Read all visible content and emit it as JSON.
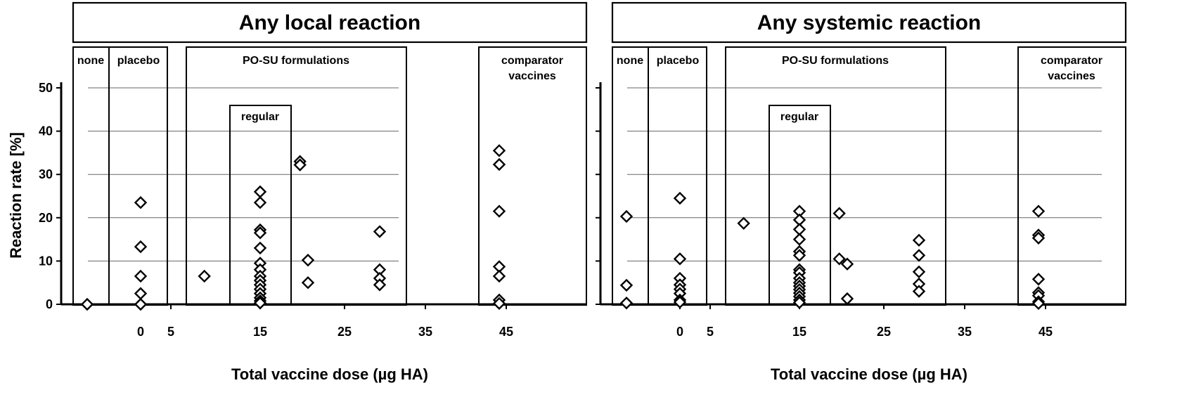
{
  "y_axis_label": "Reaction rate  [%]",
  "chart_data": [
    {
      "type": "scatter",
      "title": "Any local reaction",
      "xlabel": "Total vaccine dose (µg HA)",
      "ylabel": "Reaction rate  [%]",
      "ylim": [
        0,
        50
      ],
      "y_ticks": [
        0,
        10,
        20,
        30,
        40,
        50
      ],
      "x_ticks": [
        "0",
        "5",
        "15",
        "25",
        "35",
        "45"
      ],
      "grid": true,
      "groups": [
        {
          "label": "none"
        },
        {
          "label": "placebo"
        },
        {
          "label": "PO-SU formulations"
        },
        {
          "label": "regular"
        },
        {
          "label": "comparator vaccines"
        }
      ],
      "points": [
        [
          -5,
          0
        ],
        [
          0,
          23.5
        ],
        [
          0,
          13.3
        ],
        [
          0,
          6.5
        ],
        [
          0,
          2.5
        ],
        [
          0,
          0
        ],
        [
          8,
          6.5
        ],
        [
          15,
          26
        ],
        [
          15,
          23.5
        ],
        [
          15,
          17.2
        ],
        [
          15,
          16.5
        ],
        [
          15,
          13
        ],
        [
          15,
          9.5
        ],
        [
          15,
          8
        ],
        [
          15,
          6.5
        ],
        [
          15,
          5.5
        ],
        [
          15,
          4.5
        ],
        [
          15,
          3.5
        ],
        [
          15,
          2.5
        ],
        [
          15,
          1.5
        ],
        [
          15,
          0.8
        ],
        [
          15,
          0.3
        ],
        [
          20,
          33
        ],
        [
          20,
          32.2
        ],
        [
          21,
          10.2
        ],
        [
          21,
          5
        ],
        [
          30,
          16.8
        ],
        [
          30,
          8
        ],
        [
          30,
          6
        ],
        [
          30,
          4.5
        ],
        [
          45,
          35.5
        ],
        [
          45,
          32.3
        ],
        [
          45,
          21.5
        ],
        [
          45,
          8.7
        ],
        [
          45,
          6.5
        ],
        [
          45,
          1
        ],
        [
          45,
          0.2
        ]
      ]
    },
    {
      "type": "scatter",
      "title": "Any systemic reaction",
      "xlabel": "Total vaccine dose (µg HA)",
      "ylabel": "Reaction rate  [%]",
      "ylim": [
        0,
        50
      ],
      "y_ticks": [
        0,
        10,
        20,
        30,
        40,
        50
      ],
      "x_ticks": [
        "0",
        "5",
        "15",
        "25",
        "35",
        "45"
      ],
      "grid": true,
      "groups": [
        {
          "label": "none"
        },
        {
          "label": "placebo"
        },
        {
          "label": "PO-SU formulations"
        },
        {
          "label": "regular"
        },
        {
          "label": "comparator vaccines"
        }
      ],
      "points": [
        [
          -5,
          20.3
        ],
        [
          -5,
          4.4
        ],
        [
          -5,
          0.3
        ],
        [
          0,
          24.5
        ],
        [
          0,
          10.5
        ],
        [
          0,
          6
        ],
        [
          0,
          4.5
        ],
        [
          0,
          3.5
        ],
        [
          0,
          2.5
        ],
        [
          0,
          1
        ],
        [
          0,
          0.5
        ],
        [
          8,
          18.7
        ],
        [
          15,
          21.5
        ],
        [
          15,
          19.5
        ],
        [
          15,
          17.3
        ],
        [
          15,
          15
        ],
        [
          15,
          12.2
        ],
        [
          15,
          11.3
        ],
        [
          15,
          8
        ],
        [
          15,
          7.3
        ],
        [
          15,
          6
        ],
        [
          15,
          5
        ],
        [
          15,
          4.2
        ],
        [
          15,
          3.4
        ],
        [
          15,
          2.6
        ],
        [
          15,
          1.8
        ],
        [
          15,
          1
        ],
        [
          15,
          0.4
        ],
        [
          20,
          21
        ],
        [
          20,
          10.5
        ],
        [
          21,
          9.3
        ],
        [
          21,
          1.3
        ],
        [
          30,
          14.8
        ],
        [
          30,
          11.3
        ],
        [
          30,
          7.5
        ],
        [
          30,
          4.7
        ],
        [
          30,
          3
        ],
        [
          45,
          21.5
        ],
        [
          45,
          16
        ],
        [
          45,
          15.3
        ],
        [
          45,
          5.8
        ],
        [
          45,
          2.7
        ],
        [
          45,
          2
        ],
        [
          45,
          0.6
        ],
        [
          45,
          0.2
        ]
      ]
    }
  ]
}
